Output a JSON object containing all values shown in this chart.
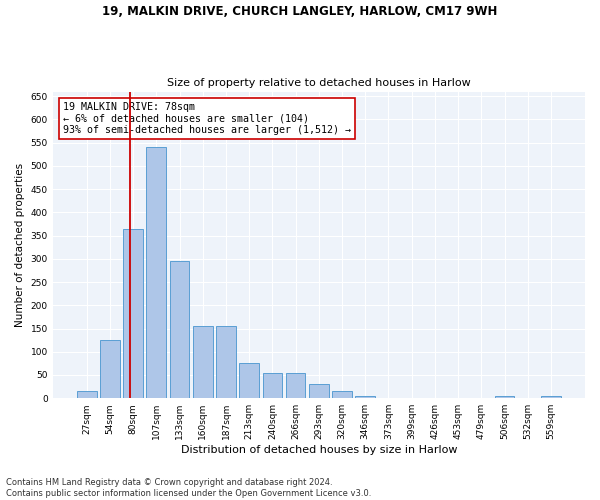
{
  "title1": "19, MALKIN DRIVE, CHURCH LANGLEY, HARLOW, CM17 9WH",
  "title2": "Size of property relative to detached houses in Harlow",
  "xlabel": "Distribution of detached houses by size in Harlow",
  "ylabel": "Number of detached properties",
  "bar_labels": [
    "27sqm",
    "54sqm",
    "80sqm",
    "107sqm",
    "133sqm",
    "160sqm",
    "187sqm",
    "213sqm",
    "240sqm",
    "266sqm",
    "293sqm",
    "320sqm",
    "346sqm",
    "373sqm",
    "399sqm",
    "426sqm",
    "453sqm",
    "479sqm",
    "506sqm",
    "532sqm",
    "559sqm"
  ],
  "bar_values": [
    15,
    125,
    365,
    540,
    295,
    155,
    155,
    75,
    55,
    55,
    30,
    15,
    5,
    0,
    0,
    0,
    0,
    0,
    5,
    0,
    5
  ],
  "bar_color": "#aec6e8",
  "bar_edge_color": "#5a9fd4",
  "vline_color": "#cc0000",
  "annotation_text": "19 MALKIN DRIVE: 78sqm\n← 6% of detached houses are smaller (104)\n93% of semi-detached houses are larger (1,512) →",
  "annotation_box_color": "#ffffff",
  "annotation_box_edgecolor": "#cc0000",
  "ylim": [
    0,
    660
  ],
  "yticks": [
    0,
    50,
    100,
    150,
    200,
    250,
    300,
    350,
    400,
    450,
    500,
    550,
    600,
    650
  ],
  "background_color": "#eef3fa",
  "footnote1": "Contains HM Land Registry data © Crown copyright and database right 2024.",
  "footnote2": "Contains public sector information licensed under the Open Government Licence v3.0."
}
